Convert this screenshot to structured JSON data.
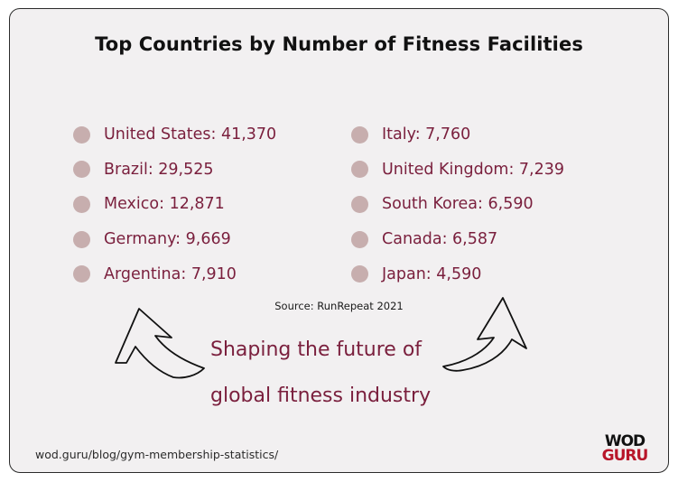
{
  "title": "Top Countries by Number of Fitness Facilities",
  "colors": {
    "bullet": "#c7aeae",
    "item_text": "#7a1f3d",
    "tagline": "#7a1f3d",
    "logo_accent": "#b8162a"
  },
  "countries_left": [
    {
      "label": "United States: 41,370"
    },
    {
      "label": "Brazil: 29,525"
    },
    {
      "label": "Mexico: 12,871"
    },
    {
      "label": "Germany: 9,669"
    },
    {
      "label": "Argentina: 7,910"
    }
  ],
  "countries_right": [
    {
      "label": "Italy: 7,760"
    },
    {
      "label": "United Kingdom: 7,239"
    },
    {
      "label": "South Korea: 6,590"
    },
    {
      "label": "Canada: 6,587"
    },
    {
      "label": "Japan: 4,590"
    }
  ],
  "source": "Source: RunRepeat 2021",
  "tagline": {
    "line1": "Shaping the future of",
    "line2": "global fitness industry"
  },
  "footer_url": "wod.guru/blog/gym-membership-statistics/",
  "logo": {
    "line1": "WOD",
    "line2": "GURU"
  },
  "icons": {
    "left_arrow": "hand-drawn-arrow-up-left-icon",
    "right_arrow": "hand-drawn-arrow-up-right-icon"
  }
}
